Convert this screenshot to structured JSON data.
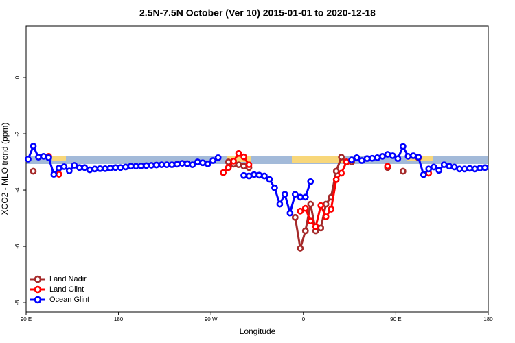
{
  "chart_data": {
    "type": "line",
    "title": "2.5N-7.5N October (Ver 10)   2015-01-01 to 2020-12-18",
    "x_label": "Longitude",
    "y_label": "XCO2 - MLO trend (ppm)",
    "xlim": [
      90,
      540
    ],
    "ylim": [
      -8.34,
      1.83
    ],
    "xticks": [
      {
        "value": 90,
        "label": "90 E"
      },
      180,
      {
        "value": 270,
        "label": "90 W"
      },
      {
        "value": 360,
        "label": "0"
      },
      {
        "value": 450,
        "label": "90 E"
      },
      {
        "value": 540,
        "label": "180"
      }
    ],
    "yticks": [
      -8,
      -6,
      -4,
      -2,
      0
    ],
    "legend": "bottom-left",
    "x": [
      92,
      97,
      102,
      107,
      112,
      117,
      122,
      127,
      132,
      137,
      142,
      147,
      152,
      157,
      162,
      167,
      172,
      177,
      182,
      187,
      192,
      197,
      202,
      207,
      212,
      217,
      222,
      227,
      232,
      237,
      242,
      247,
      252,
      257,
      262,
      267,
      272,
      277,
      282,
      287,
      292,
      297,
      302,
      307,
      312,
      317,
      322,
      327,
      332,
      337,
      342,
      347,
      352,
      357,
      362,
      367,
      372,
      377,
      382,
      387,
      392,
      397,
      402,
      407,
      412,
      417,
      422,
      427,
      432,
      437,
      442,
      447,
      452,
      457,
      462,
      467,
      472,
      477,
      482,
      487,
      492,
      497,
      502,
      507,
      512,
      517,
      522,
      527,
      532,
      537
    ],
    "series": [
      {
        "name": "Land Nadir",
        "color": "#a52a2a",
        "values": [
          null,
          -3.33,
          null,
          null,
          null,
          null,
          null,
          null,
          null,
          null,
          null,
          null,
          null,
          null,
          null,
          null,
          null,
          null,
          null,
          null,
          null,
          null,
          null,
          null,
          null,
          null,
          null,
          null,
          null,
          null,
          null,
          null,
          null,
          null,
          null,
          null,
          null,
          null,
          null,
          -3.0,
          -3.08,
          -3.1,
          -3.15,
          -3.2,
          null,
          null,
          null,
          null,
          null,
          null,
          null,
          null,
          -4.97,
          -6.07,
          -5.45,
          -4.5,
          -5.45,
          -5.35,
          -4.5,
          -4.25,
          -3.33,
          -2.83,
          -3.0,
          -3.0,
          null,
          null,
          null,
          null,
          null,
          null,
          -3.2,
          null,
          null,
          -3.33,
          null,
          null,
          -2.85,
          null,
          null,
          null,
          null,
          null,
          null,
          null,
          null,
          null,
          null,
          null,
          null,
          null
        ]
      },
      {
        "name": "Land Glint",
        "color": "#ff0000",
        "values": [
          null,
          null,
          null,
          null,
          -2.8,
          null,
          -3.44,
          null,
          null,
          null,
          null,
          null,
          null,
          null,
          null,
          null,
          null,
          null,
          null,
          null,
          null,
          null,
          null,
          null,
          null,
          null,
          null,
          null,
          null,
          null,
          null,
          null,
          null,
          null,
          null,
          null,
          null,
          null,
          -3.38,
          -3.2,
          -2.97,
          -2.7,
          -2.82,
          -3.1,
          null,
          null,
          null,
          null,
          null,
          null,
          null,
          null,
          null,
          -4.75,
          -4.65,
          -5.1,
          -5.3,
          -4.55,
          -4.95,
          -4.68,
          -3.63,
          -3.4,
          -3.0,
          null,
          null,
          null,
          null,
          null,
          null,
          null,
          -3.15,
          null,
          null,
          null,
          null,
          null,
          -2.83,
          null,
          -3.4,
          null,
          null,
          null,
          null,
          null,
          null,
          null,
          null,
          null,
          null,
          null
        ]
      },
      {
        "name": "Ocean Glint",
        "color": "#0000ff",
        "values": [
          -2.9,
          -2.44,
          -2.83,
          -2.8,
          -2.85,
          -3.44,
          -3.22,
          -3.17,
          -3.32,
          -3.12,
          -3.2,
          -3.2,
          -3.28,
          -3.25,
          -3.24,
          -3.24,
          -3.22,
          -3.2,
          -3.2,
          -3.18,
          -3.15,
          -3.15,
          -3.14,
          -3.13,
          -3.12,
          -3.11,
          -3.1,
          -3.1,
          -3.1,
          -3.08,
          -3.05,
          -3.06,
          -3.1,
          -3.0,
          -3.03,
          -3.07,
          -2.95,
          -2.85,
          null,
          null,
          null,
          null,
          -3.48,
          -3.5,
          -3.45,
          -3.47,
          -3.5,
          -3.62,
          -3.92,
          -4.5,
          -4.15,
          -4.82,
          -4.15,
          -4.25,
          -4.25,
          -3.7,
          null,
          null,
          null,
          null,
          null,
          null,
          null,
          -2.93,
          -2.85,
          -2.95,
          -2.88,
          -2.87,
          -2.85,
          -2.8,
          -2.73,
          -2.78,
          -2.88,
          -2.45,
          -2.8,
          -2.78,
          -2.83,
          -3.45,
          -3.25,
          -3.18,
          -3.3,
          -3.1,
          -3.15,
          -3.18,
          -3.25,
          -3.25,
          -3.23,
          -3.25,
          -3.22,
          -3.2
        ]
      }
    ]
  }
}
